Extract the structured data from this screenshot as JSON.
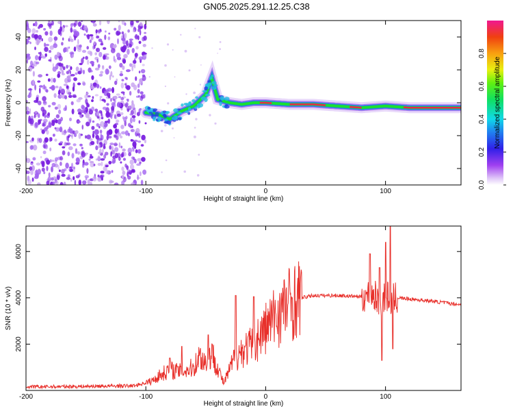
{
  "title": "GN05.2025.291.12.25.C38",
  "colors": {
    "snr_line": "#e8302b",
    "dots": "#7a20e0",
    "dots_light": "#c8a4f0",
    "ridge_core": "#e8264a",
    "ridge_mid": "#18e030",
    "ridge_outer": "#2b7ae8"
  },
  "chart_data": [
    {
      "type": "heatmap",
      "xlabel": "Height of straight line (km)",
      "ylabel": "Frequency (Hz)",
      "xlim": [
        -200,
        163
      ],
      "ylim": [
        -50,
        50
      ],
      "xticks": [
        -200,
        -100,
        0,
        100
      ],
      "yticks": [
        -40,
        -20,
        0,
        20,
        40
      ],
      "xtick_labels": [
        "-200",
        "-100",
        "0",
        "100"
      ],
      "ytick_labels": [
        "-40",
        "-20",
        "0",
        "20",
        "40"
      ],
      "noise_region_x": [
        -200,
        -100
      ],
      "ridge": {
        "x": [
          -100,
          -90,
          -80,
          -70,
          -60,
          -50,
          -45,
          -40,
          -30,
          -20,
          -10,
          0,
          20,
          40,
          60,
          80,
          100,
          120,
          140,
          163
        ],
        "y": [
          -6,
          -7,
          -10,
          -5,
          -2,
          5,
          15,
          2,
          0,
          -1,
          0,
          0,
          -1,
          -1,
          -2,
          -3,
          -2,
          -3,
          -3,
          -3
        ]
      },
      "colorbar": {
        "label": "Normalized spectral amplitude",
        "range": [
          0,
          1
        ],
        "ticks": [
          0.0,
          0.2,
          0.4,
          0.6,
          0.8
        ],
        "tick_labels": [
          "0.0",
          "0.2",
          "0.4",
          "0.6",
          "0.8"
        ]
      }
    },
    {
      "type": "line",
      "xlabel": "Height of straight line (km)",
      "ylabel": "SNR (10 * v/v)",
      "xlim": [
        -200,
        163
      ],
      "ylim": [
        0,
        7100
      ],
      "xticks": [
        -200,
        -100,
        0,
        100
      ],
      "yticks": [
        2000,
        4000,
        6000
      ],
      "xtick_labels": [
        "-200",
        "-100",
        "0",
        "100"
      ],
      "ytick_labels": [
        "2000",
        "4000",
        "6000"
      ],
      "series": [
        {
          "name": "SNR",
          "x": [
            -200,
            -110,
            -95,
            -90,
            -80,
            -70,
            -60,
            -55,
            -50,
            -45,
            -40,
            -35,
            -30,
            -25,
            -20,
            -10,
            0,
            10,
            20,
            30,
            40,
            60,
            80,
            90,
            95,
            100,
            105,
            110,
            120,
            140,
            163
          ],
          "y": [
            150,
            200,
            400,
            600,
            900,
            800,
            1000,
            1500,
            1200,
            1600,
            1000,
            300,
            900,
            1500,
            1700,
            2000,
            2700,
            3300,
            3800,
            4000,
            4100,
            4100,
            4050,
            4150,
            3800,
            4100,
            3900,
            4000,
            3950,
            3850,
            3700
          ],
          "spikes": [
            {
              "x": -80,
              "y": 1400
            },
            {
              "x": -70,
              "y": 1900
            },
            {
              "x": -48,
              "y": 2400
            },
            {
              "x": -25,
              "y": 4100
            },
            {
              "x": -10,
              "y": 4050
            },
            {
              "x": 87,
              "y": 5900
            },
            {
              "x": 95,
              "y": 5300
            },
            {
              "x": 97,
              "y": 1300
            },
            {
              "x": 100,
              "y": 6400
            },
            {
              "x": 104,
              "y": 7100
            },
            {
              "x": 106,
              "y": 1800
            }
          ]
        }
      ]
    }
  ]
}
